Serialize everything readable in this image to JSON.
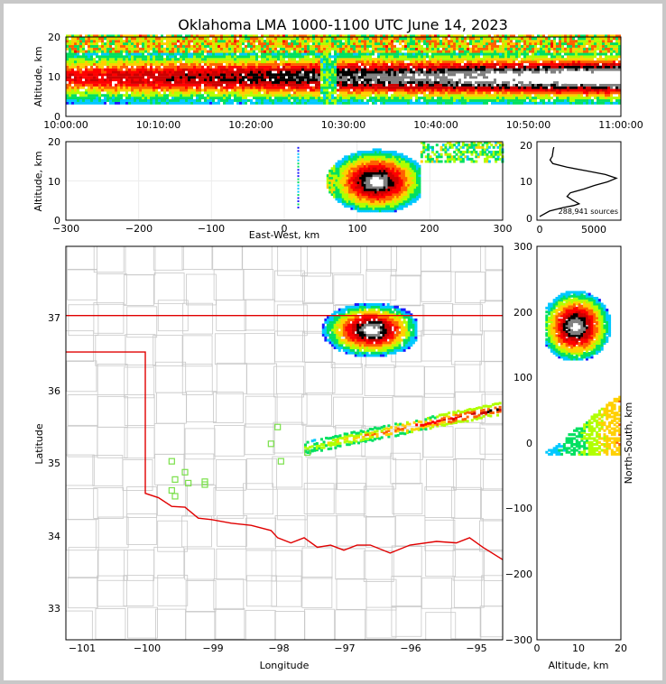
{
  "chart_data": {
    "type": "heatmap",
    "title": "Oklahoma LMA 1000-1100 UTC June 14, 2023",
    "panels": {
      "time_altitude": {
        "ylabel": "Altitude, km",
        "ylim": [
          0,
          20
        ],
        "yticks": [
          "0",
          "10",
          "20"
        ],
        "xticks": [
          "10:00:00",
          "10:10:00",
          "10:20:00",
          "10:30:00",
          "10:40:00",
          "10:50:00",
          "11:00:00"
        ]
      },
      "ew_altitude": {
        "ylabel": "Altitude, km",
        "xlabel": "East-West, km",
        "xlim": [
          -300,
          300
        ],
        "ylim": [
          0,
          20
        ],
        "xticks": [
          "−300",
          "−200",
          "−100",
          "0",
          "100",
          "200",
          "300"
        ],
        "yticks": [
          "0",
          "10",
          "20"
        ]
      },
      "histogram": {
        "yticks": [
          "0",
          "10",
          "20"
        ],
        "xticks": [
          "0",
          "5000"
        ],
        "annotation": "288,941 sources",
        "profile_altitude_km": [
          0.5,
          2,
          3,
          3.5,
          4,
          5,
          6,
          7,
          8,
          9,
          10,
          11,
          12,
          13,
          14,
          15,
          16,
          17,
          18,
          19,
          19.5
        ],
        "profile_sources": [
          0,
          900,
          2200,
          3100,
          3600,
          3000,
          2500,
          2800,
          4000,
          5000,
          6200,
          7000,
          6000,
          4300,
          2500,
          1200,
          950,
          1150,
          1200,
          1250,
          1300
        ]
      },
      "plan_view": {
        "xlabel": "Longitude",
        "ylabel": "Latitude",
        "xlim": [
          -101.2,
          -94.6
        ],
        "ylim": [
          32.55,
          37.95
        ],
        "xticks": [
          "−101",
          "−100",
          "−99",
          "−98",
          "−97",
          "−96",
          "−95"
        ],
        "yticks": [
          "33",
          "34",
          "35",
          "36",
          "37"
        ],
        "stations_lonlat": [
          [
            -99.6,
            35.0
          ],
          [
            -99.4,
            34.85
          ],
          [
            -99.55,
            34.75
          ],
          [
            -99.35,
            34.7
          ],
          [
            -99.6,
            34.6
          ],
          [
            -99.55,
            34.52
          ],
          [
            -99.1,
            34.72
          ],
          [
            -99.1,
            34.68
          ],
          [
            -98.0,
            35.47
          ],
          [
            -98.1,
            35.24
          ],
          [
            -97.95,
            35.0
          ],
          [
            -97.55,
            35.12
          ]
        ]
      },
      "ns_altitude": {
        "xlabel": "Altitude, km",
        "ylabel": "North-South, km",
        "xlim": [
          0,
          20
        ],
        "ylim": [
          -300,
          300
        ],
        "xticks": [
          "0",
          "10",
          "20"
        ],
        "yticks": [
          "−300",
          "−200",
          "−100",
          "0",
          "100",
          "200",
          "300"
        ]
      }
    },
    "colorscale": [
      "#1a1aff",
      "#00c8ff",
      "#00e060",
      "#b0ff00",
      "#ffd000",
      "#ff6000",
      "#ff0000",
      "#cc0000",
      "#000000",
      "#808080",
      "#ffffff"
    ]
  }
}
